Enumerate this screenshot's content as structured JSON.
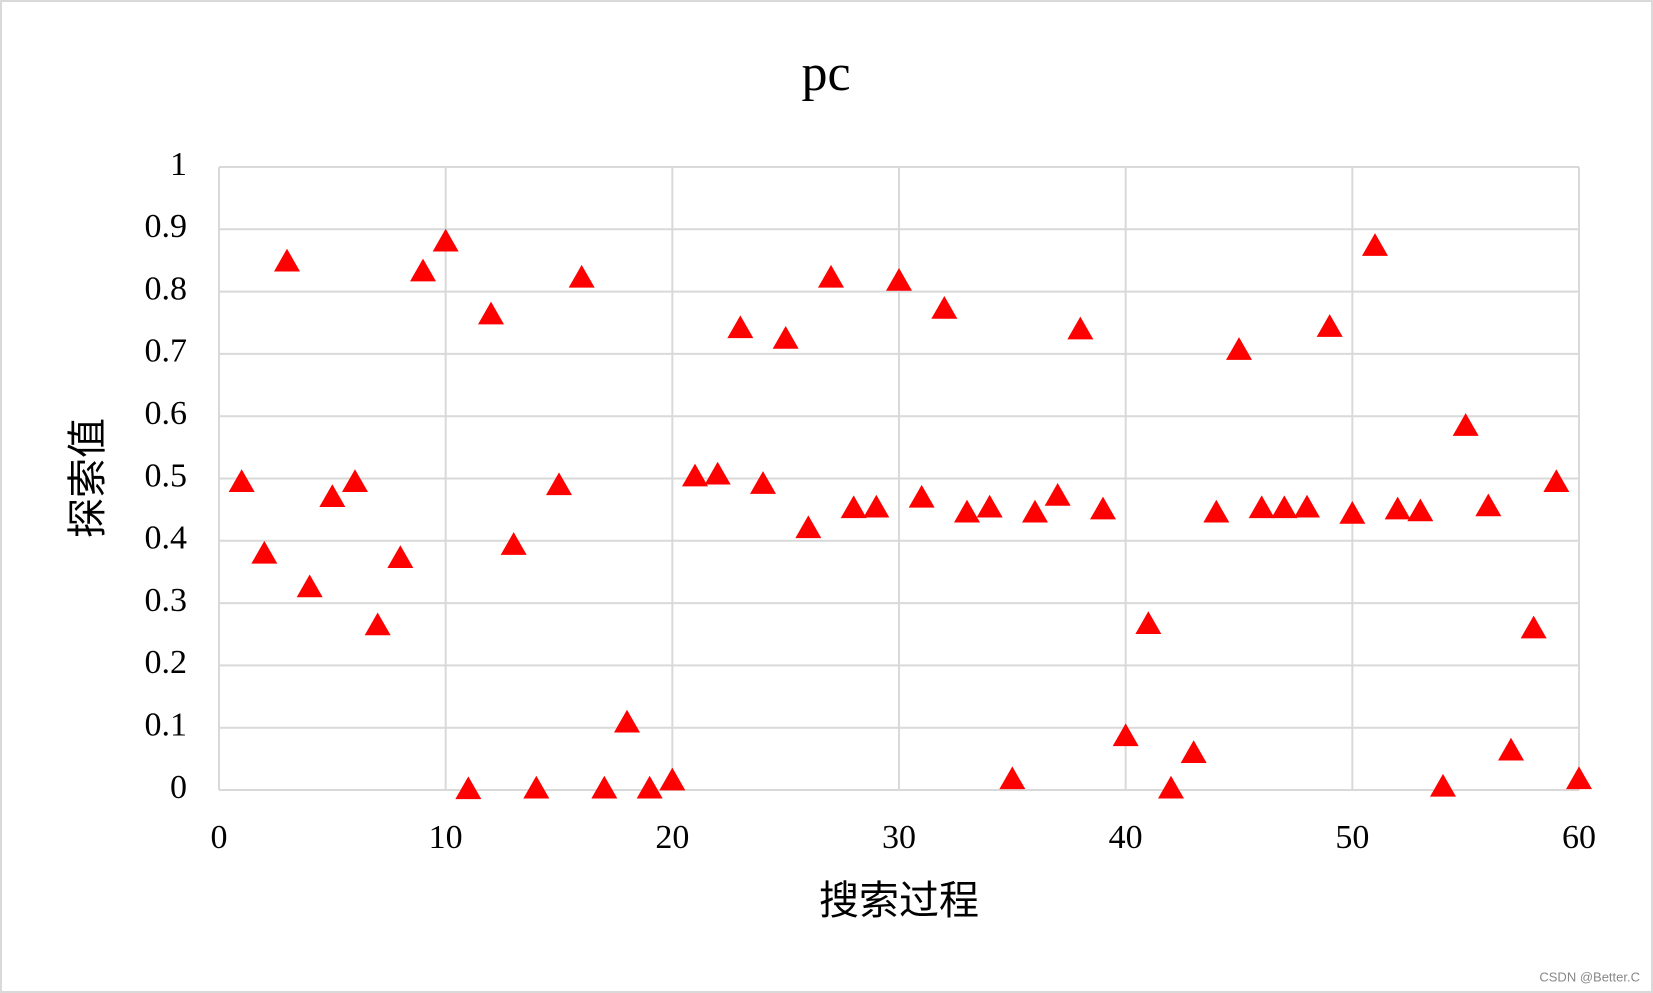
{
  "chart_data": {
    "type": "scatter",
    "title": "pc",
    "x_label": "搜索过程",
    "y_label": "探索值",
    "x": [
      1,
      2,
      3,
      4,
      5,
      6,
      7,
      8,
      9,
      10,
      11,
      12,
      13,
      14,
      15,
      16,
      17,
      18,
      19,
      20,
      21,
      22,
      23,
      24,
      25,
      26,
      27,
      28,
      29,
      30,
      31,
      32,
      33,
      34,
      35,
      36,
      37,
      38,
      39,
      40,
      41,
      42,
      43,
      44,
      45,
      46,
      47,
      48,
      49,
      50,
      51,
      52,
      53,
      54,
      55,
      56,
      57,
      58,
      59,
      60
    ],
    "values": [
      0.494,
      0.379,
      0.848,
      0.325,
      0.47,
      0.494,
      0.264,
      0.372,
      0.832,
      0.88,
      0.001,
      0.763,
      0.393,
      0.002,
      0.489,
      0.822,
      0.002,
      0.108,
      0.002,
      0.015,
      0.503,
      0.506,
      0.741,
      0.491,
      0.724,
      0.42,
      0.822,
      0.452,
      0.453,
      0.817,
      0.469,
      0.772,
      0.445,
      0.453,
      0.017,
      0.445,
      0.472,
      0.739,
      0.45,
      0.086,
      0.266,
      0.002,
      0.059,
      0.445,
      0.706,
      0.452,
      0.452,
      0.453,
      0.743,
      0.443,
      0.873,
      0.45,
      0.447,
      0.005,
      0.584,
      0.455,
      0.063,
      0.259,
      0.494,
      0.017
    ],
    "color": "#ff0000",
    "marker": "triangle",
    "xlim": [
      0,
      60
    ],
    "xticks": [
      0,
      10,
      20,
      30,
      40,
      50,
      60
    ],
    "ylim": [
      0,
      1
    ],
    "yticks": [
      0,
      0.1,
      0.2,
      0.3,
      0.4,
      0.5,
      0.6,
      0.7,
      0.8,
      0.9,
      1
    ],
    "grid": true,
    "watermark": "CSDN @Better.C"
  }
}
